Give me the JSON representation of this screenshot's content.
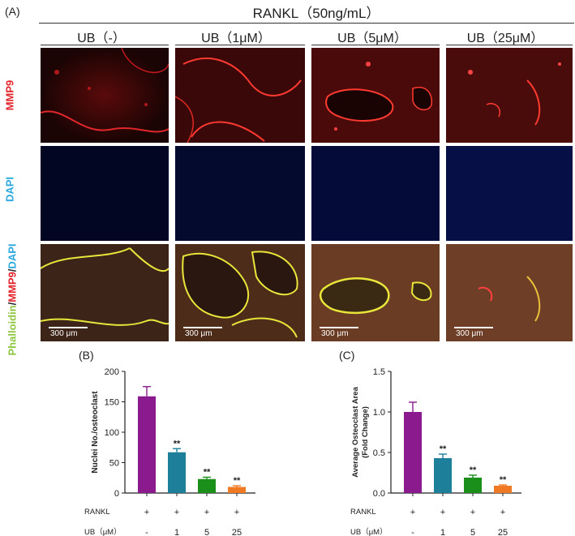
{
  "panel_a": {
    "label": "(A)",
    "header": "RANKL（50ng/mL）",
    "columns": [
      "UB（-）",
      "UB（1μM）",
      "UB（5μM）",
      "UB（25μM）"
    ],
    "rows": {
      "mmp9": "MMP9",
      "dapi": "DAPI",
      "merge_phalloidin": "Phalloidin",
      "merge_slash1": "/",
      "merge_mmp9": "MMP9",
      "merge_slash2": "/",
      "merge_dapi": "DAPI"
    },
    "scale_bar": "300 μm"
  },
  "chart_data": [
    {
      "panel": "(B)",
      "type": "bar",
      "ylabel": "Nuclei No./osteoclast",
      "ylim": [
        0,
        200
      ],
      "yticks": [
        "0",
        "50",
        "100",
        "150",
        "200"
      ],
      "categories": [
        "-",
        "1",
        "5",
        "25"
      ],
      "rankl": [
        "+",
        "+",
        "+",
        "+"
      ],
      "row_labels": [
        "RANKL",
        "UB（μM）"
      ],
      "values": [
        159,
        67,
        23,
        10
      ],
      "errors": [
        16,
        6,
        3,
        2
      ],
      "significance": [
        "",
        "**",
        "**",
        "**"
      ],
      "colors": [
        "#8a1a8e",
        "#1e7f9b",
        "#1a8f1a",
        "#f07a23"
      ]
    },
    {
      "panel": "(C)",
      "type": "bar",
      "ylabel": "Average Osteoclast Area",
      "ylabel2": "(Fold Change)",
      "ylim": [
        0,
        1.5
      ],
      "yticks": [
        "0.0",
        "0.5",
        "1.0",
        "1.5"
      ],
      "categories": [
        "-",
        "1",
        "5",
        "25"
      ],
      "rankl": [
        "+",
        "+",
        "+",
        "+"
      ],
      "row_labels": [
        "RANKL",
        "UB（μM）"
      ],
      "values": [
        1.0,
        0.43,
        0.19,
        0.09
      ],
      "errors": [
        0.12,
        0.05,
        0.03,
        0.01
      ],
      "significance": [
        "",
        "**",
        "**",
        "**"
      ],
      "colors": [
        "#8a1a8e",
        "#1e7f9b",
        "#1a8f1a",
        "#f07a23"
      ]
    }
  ]
}
